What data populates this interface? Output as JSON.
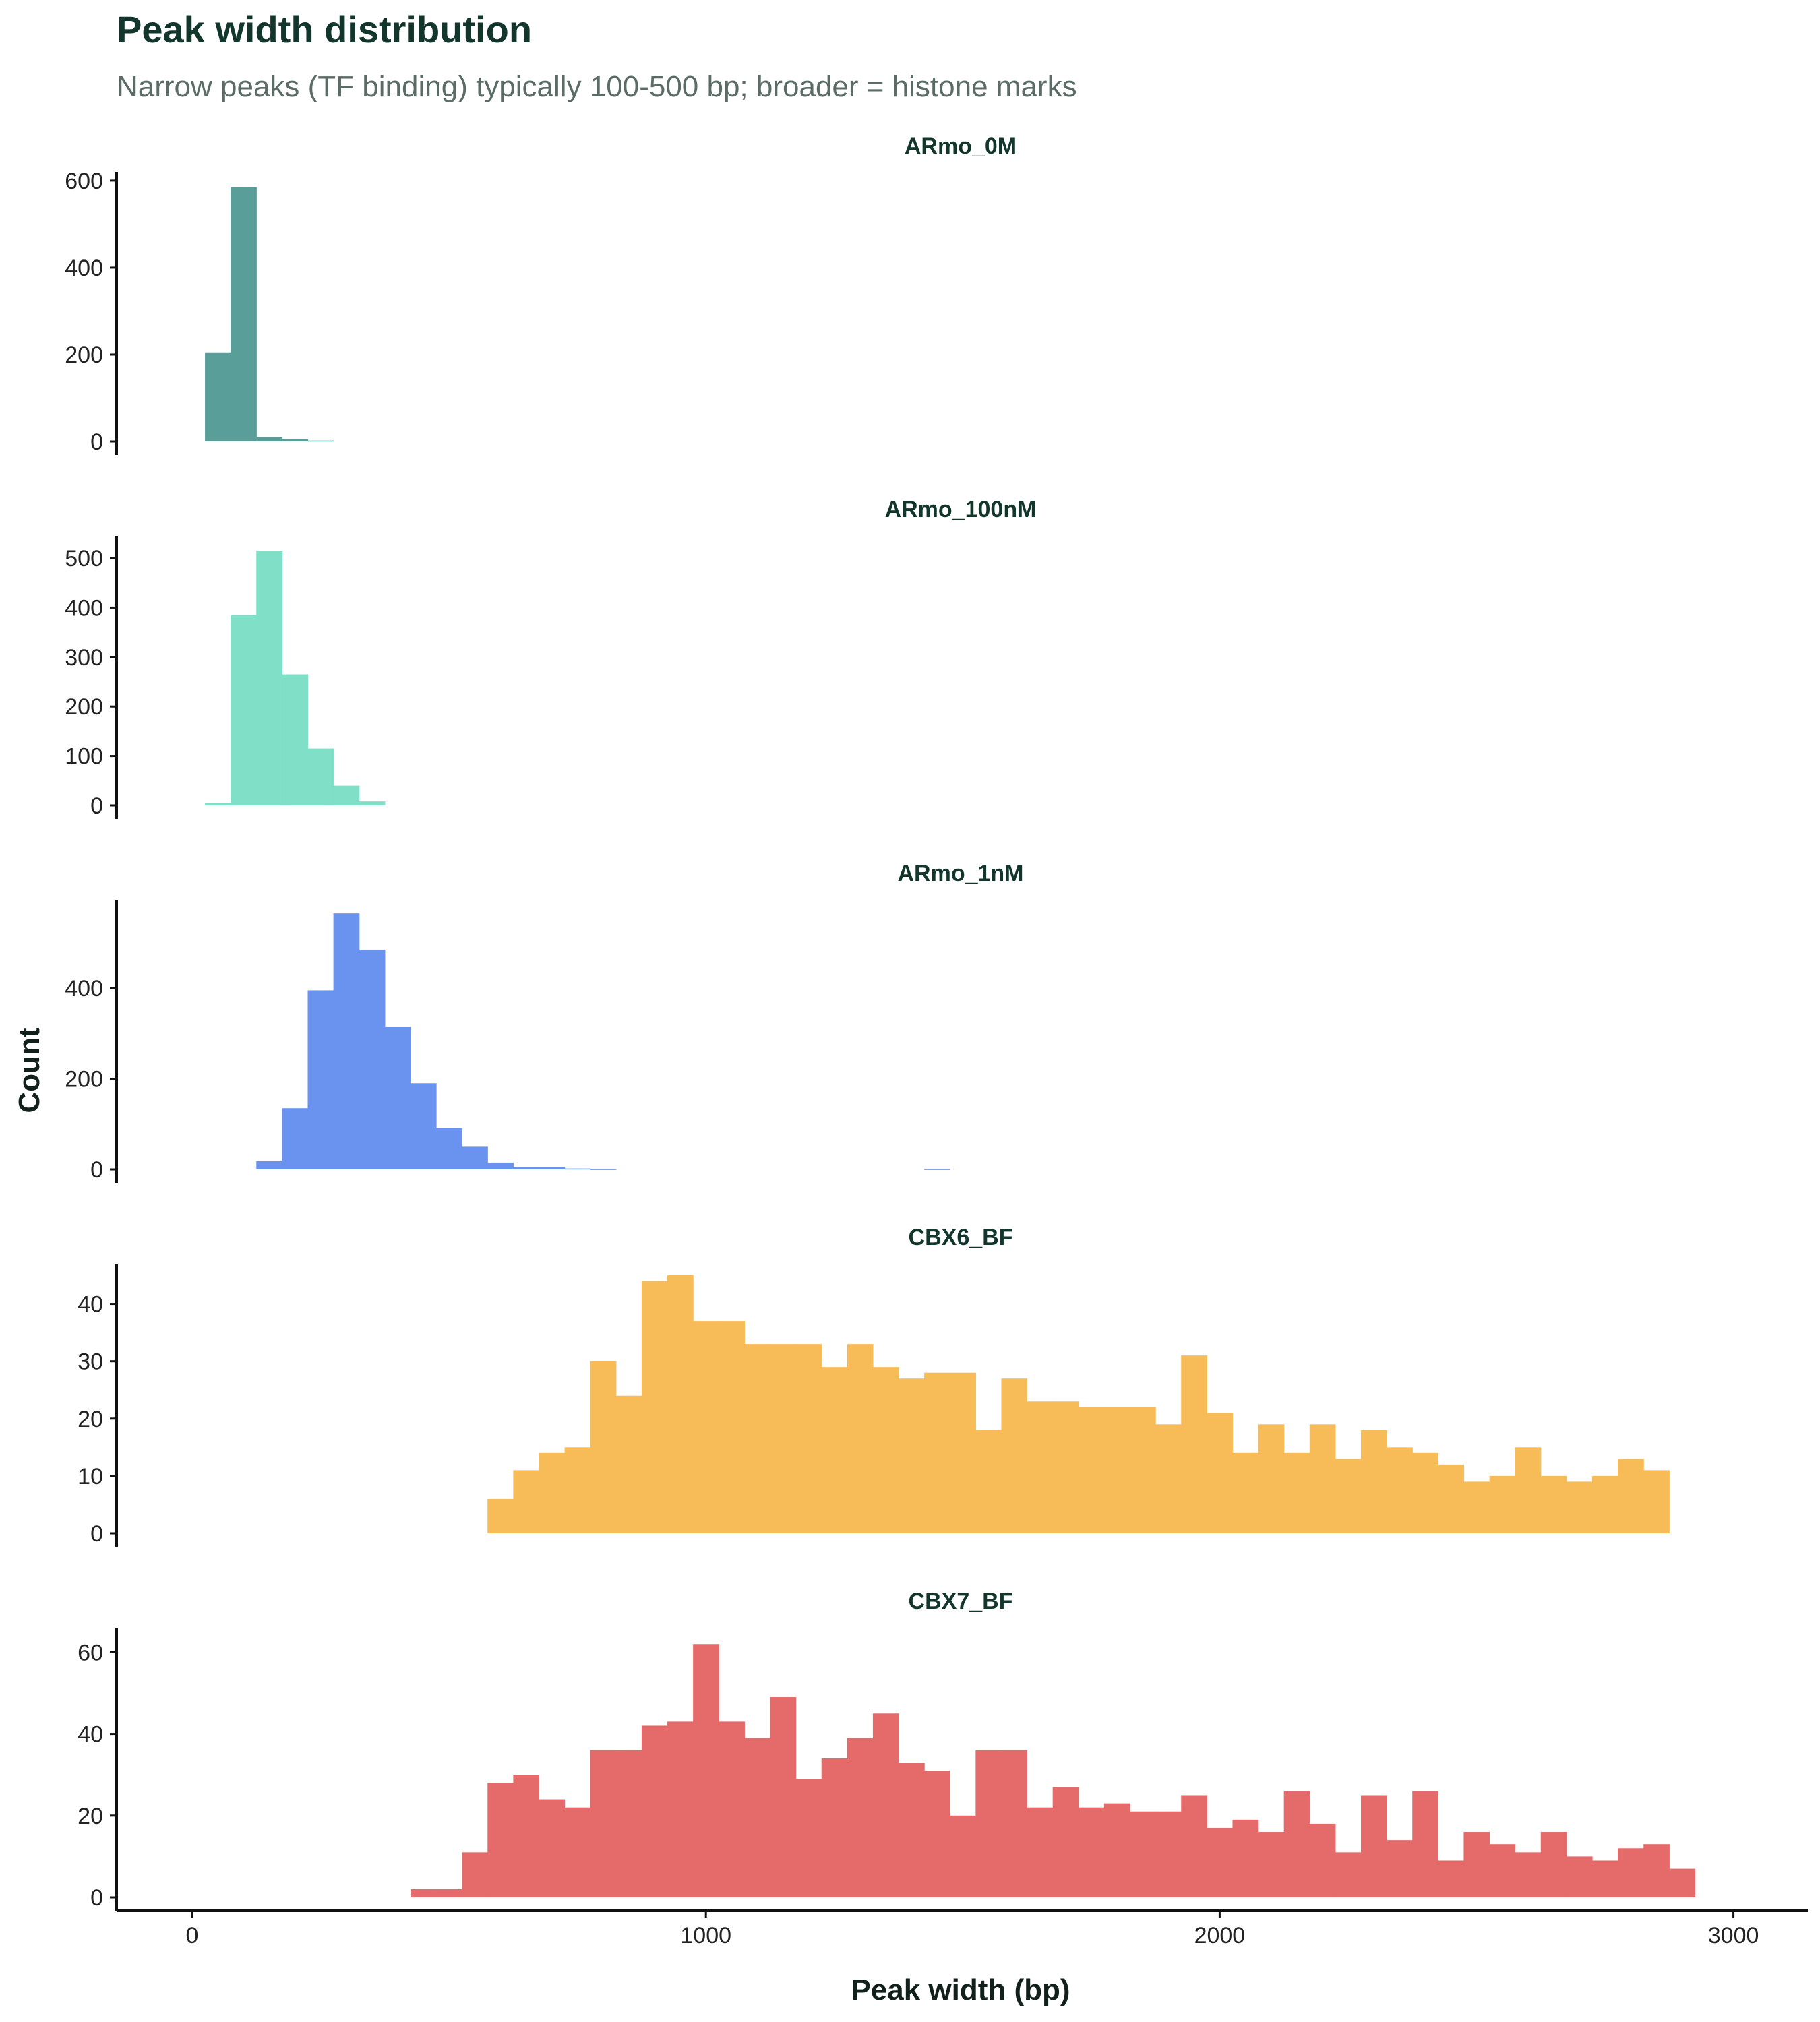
{
  "chart_data": {
    "type": "histogram",
    "title": "Peak width distribution",
    "subtitle": "Narrow peaks (TF binding) typically 100-500 bp; broader = histone marks",
    "xlabel": "Peak width (bp)",
    "ylabel": "Count",
    "xlim": [
      -150,
      3150
    ],
    "x_ticks": [
      0,
      1000,
      2000,
      3000
    ],
    "bin_width": 50,
    "grid": false,
    "legend": "none",
    "panels": [
      {
        "name": "ARmo_0M",
        "color": "#5a9e99",
        "y_ticks": [
          0,
          200,
          400,
          600
        ],
        "ylim": [
          0,
          620
        ],
        "bin_start": 25,
        "counts": [
          205,
          585,
          10,
          5,
          2
        ]
      },
      {
        "name": "ARmo_100nM",
        "color": "#7fdfc7",
        "y_ticks": [
          0,
          100,
          200,
          300,
          400,
          500
        ],
        "ylim": [
          0,
          545
        ],
        "bin_start": 25,
        "counts": [
          5,
          385,
          515,
          265,
          115,
          40,
          8
        ]
      },
      {
        "name": "ARmo_1nM",
        "color": "#6a93ef",
        "y_ticks": [
          0,
          200,
          400
        ],
        "ylim": [
          0,
          595
        ],
        "bin_start": 125,
        "counts": [
          18,
          135,
          395,
          565,
          485,
          315,
          190,
          92,
          50,
          15,
          5,
          5,
          2,
          1,
          0,
          0,
          0,
          0,
          0,
          0,
          0,
          0,
          0,
          0,
          0,
          0,
          1
        ]
      },
      {
        "name": "CBX6_BF",
        "color": "#f7bb57",
        "y_ticks": [
          0,
          10,
          20,
          30,
          40
        ],
        "ylim": [
          0,
          47
        ],
        "bin_start": 575,
        "counts": [
          6,
          11,
          14,
          15,
          30,
          24,
          44,
          45,
          37,
          37,
          33,
          33,
          33,
          29,
          33,
          29,
          27,
          28,
          28,
          18,
          27,
          23,
          23,
          22,
          22,
          22,
          19,
          31,
          21,
          14,
          19,
          14,
          19,
          13,
          18,
          15,
          14,
          12,
          9,
          10,
          15,
          10,
          9,
          10,
          13,
          11
        ]
      },
      {
        "name": "CBX7_BF",
        "color": "#e56b6b",
        "y_ticks": [
          0,
          20,
          40,
          60
        ],
        "ylim": [
          0,
          66
        ],
        "bin_start": 425,
        "counts": [
          2,
          2,
          11,
          28,
          30,
          24,
          22,
          36,
          36,
          42,
          43,
          62,
          43,
          39,
          49,
          29,
          34,
          39,
          45,
          33,
          31,
          20,
          36,
          36,
          22,
          27,
          22,
          23,
          21,
          21,
          25,
          17,
          19,
          16,
          26,
          18,
          11,
          25,
          14,
          26,
          9,
          16,
          13,
          11,
          16,
          10,
          9,
          12,
          13,
          7
        ]
      }
    ]
  }
}
